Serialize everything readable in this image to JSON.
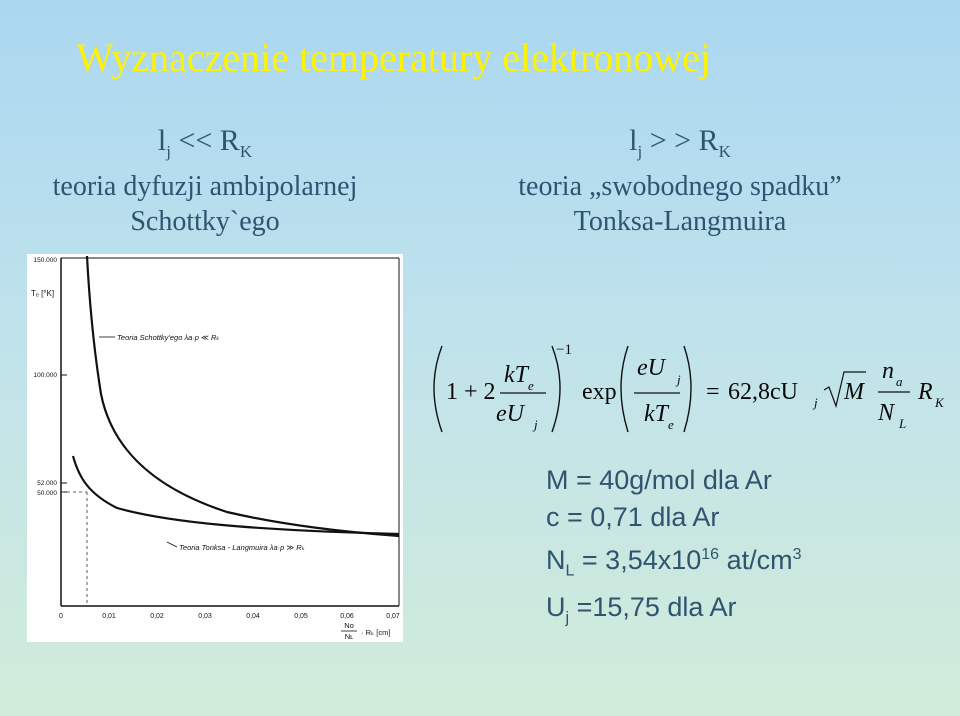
{
  "title": "Wyznaczenie temperatury elektronowej",
  "left_case": {
    "cond_l": "l",
    "cond_j": "j",
    "cond_rel": " << R",
    "cond_k": "K",
    "line1": "teoria dyfuzji ambipolarnej",
    "line2": "Schottky`ego"
  },
  "right_case": {
    "cond_l": "l",
    "cond_j": "j",
    "cond_rel": " > > R",
    "cond_k": "K",
    "line1": "teoria „swobodnego spadku”",
    "line2": "Tonksa-Langmuira"
  },
  "plot": {
    "y_ticks": [
      "150.000",
      "100.000",
      "52.000",
      "50.000"
    ],
    "x_ticks": [
      "0",
      "0,01",
      "0,02",
      "0,03",
      "0,04",
      "0,05",
      "0,06",
      "0,07"
    ],
    "y_label": "Tₑ [°K]",
    "x_label_num": "No",
    "x_label_den": "Nʟ",
    "x_label_rest": "· Rₖ [cm]",
    "label_upper": "Teoria Schottky'ego λa·p ≪ Rₖ",
    "label_lower": "Teoria Tonksa - Langmuira λa·p ≫ Rₖ"
  },
  "formula": {
    "one_plus_two": "1 + 2",
    "kTe_k": "kT",
    "e_sub": "e",
    "eUj_e": "eU",
    "j_sub": "j",
    "minus_one": "−1",
    "exp": "exp",
    "equals": "=",
    "coef": "62,8cU",
    "M": "M",
    "na_n": "n",
    "a_sub": "a",
    "NL_N": "N",
    "L_sub": "L",
    "R": "R",
    "K_sub": "K"
  },
  "constants": {
    "m_line": "M = 40g/mol dla Ar",
    "c_line": "c = 0,71 dla Ar",
    "nl_n": "N",
    "nl_l": "L",
    "nl_eq": " = 3,54x10",
    "nl_exp": "16",
    "nl_unit": " at/cm",
    "nl_unit_exp": "3",
    "uj_u": "U",
    "uj_j": "j",
    "uj_rest": " =15,75 dla Ar"
  }
}
